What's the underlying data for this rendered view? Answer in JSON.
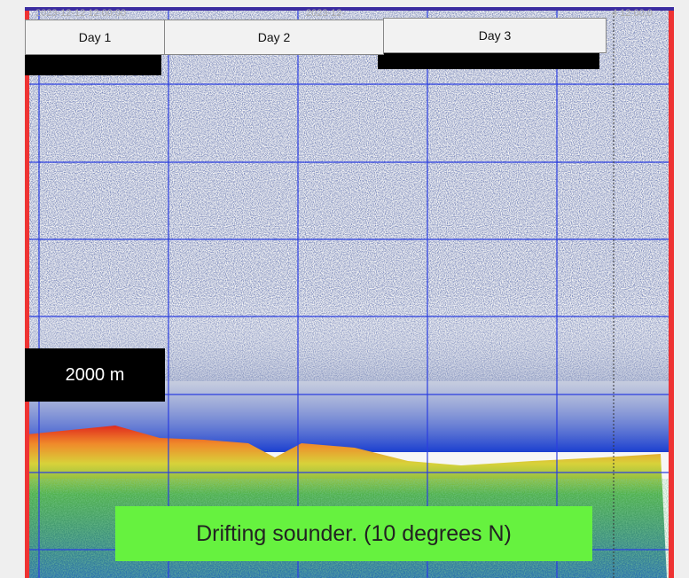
{
  "header": {
    "timestamps": [
      "2023-12-12 12:00:00",
      "2023-12-",
      "4 12:00:0"
    ]
  },
  "day_labels": [
    "Day 1",
    "Day 2",
    "Day 3"
  ],
  "depth_label": "2000 m",
  "caption": "Drifting sounder. (10 degrees N)"
}
